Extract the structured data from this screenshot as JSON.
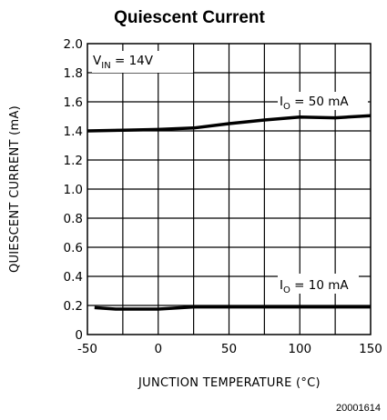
{
  "chart_data": {
    "type": "line",
    "title": "Quiescent Current",
    "xlabel": "JUNCTION TEMPERATURE (°C)",
    "ylabel": "QUIESCENT CURRENT (mA)",
    "xlim": [
      -50,
      150
    ],
    "ylim": [
      0,
      2.0
    ],
    "x_ticks": [
      "-50",
      "0",
      "50",
      "100",
      "150"
    ],
    "y_ticks": [
      "0",
      "0.2",
      "0.4",
      "0.6",
      "0.8",
      "1.0",
      "1.2",
      "1.4",
      "1.6",
      "1.8",
      "2.0"
    ],
    "grid": true,
    "annotations": {
      "condition": {
        "main": "V",
        "sub": "IN",
        "rest": " = 14V"
      },
      "io_50": {
        "main": "I",
        "sub": "O",
        "rest": " = 50 mA"
      },
      "io_10": {
        "main": "I",
        "sub": "O",
        "rest": " = 10 mA"
      }
    },
    "series": [
      {
        "x": [
          -50,
          -25,
          0,
          25,
          50,
          75,
          100,
          125,
          150
        ],
        "y": [
          1.4,
          1.405,
          1.41,
          1.42,
          1.45,
          1.475,
          1.495,
          1.49,
          1.505
        ]
      },
      {
        "x": [
          -45,
          -30,
          -20,
          0,
          25,
          50,
          100,
          150
        ],
        "y": [
          0.185,
          0.175,
          0.175,
          0.175,
          0.19,
          0.19,
          0.19,
          0.19
        ]
      }
    ],
    "colors": {
      "line": "#000000",
      "grid": "#000000"
    }
  },
  "figure_id": "20001614"
}
